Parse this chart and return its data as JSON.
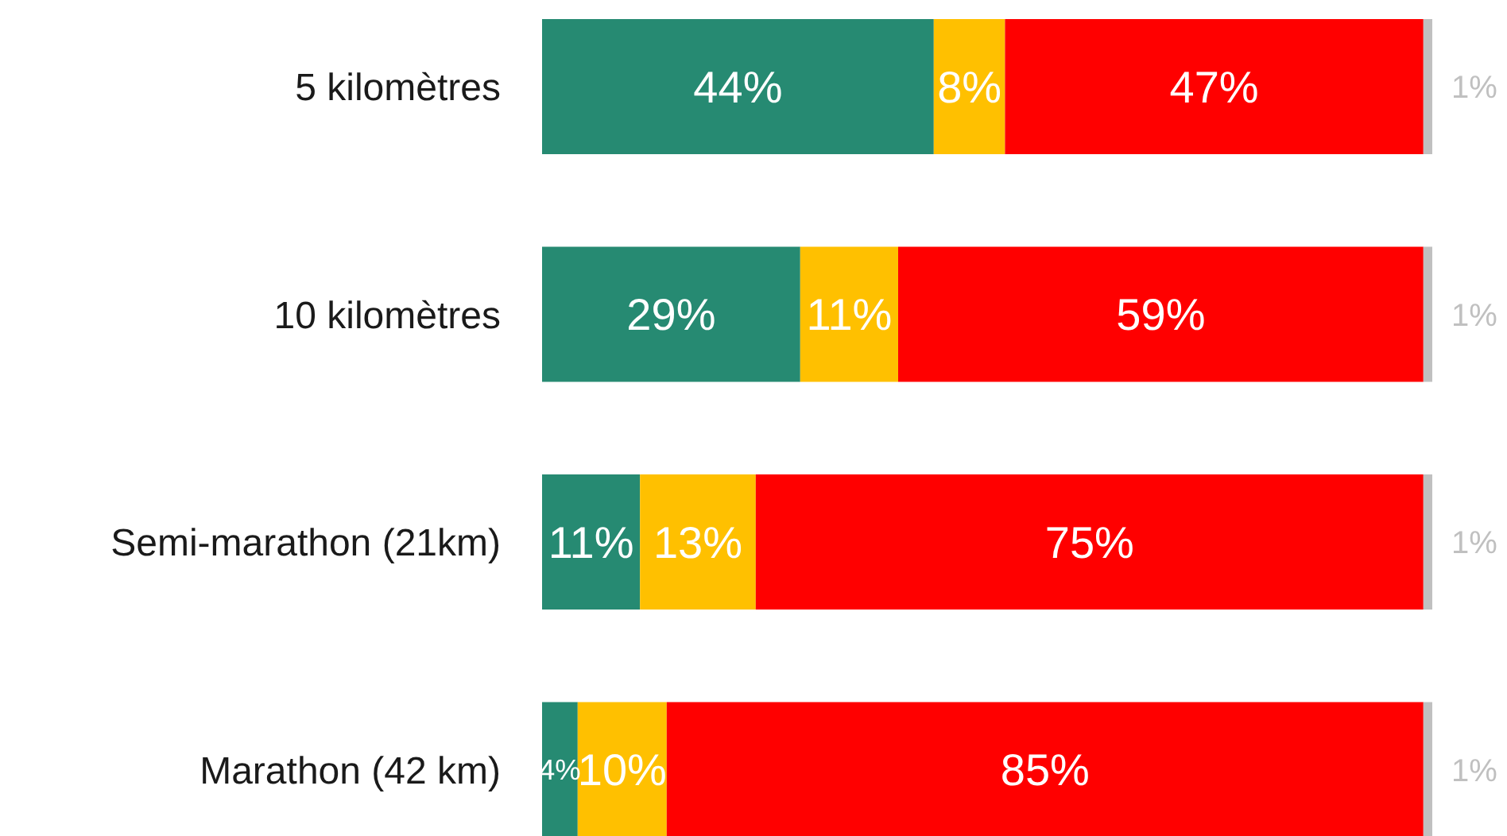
{
  "chart_data": {
    "type": "bar",
    "orientation": "horizontal",
    "stacked": true,
    "categories": [
      "5 kilomètres",
      "10 kilomètres",
      "Semi-marathon (21km)",
      "Marathon (42 km)"
    ],
    "xlim": [
      0,
      100
    ],
    "tick_labels": "y",
    "series": [
      {
        "color": "#268a72",
        "values": [
          44,
          29,
          11,
          4
        ],
        "value_labels": [
          "44%",
          "29%",
          "11%",
          "4%"
        ]
      },
      {
        "color": "#ffc000",
        "values": [
          8,
          11,
          13,
          10
        ],
        "value_labels": [
          "8%",
          "11%",
          "13%",
          "10%"
        ]
      },
      {
        "color": "#ff0000",
        "values": [
          47,
          59,
          75,
          85
        ],
        "value_labels": [
          "47%",
          "59%",
          "75%",
          "85%"
        ]
      },
      {
        "color": "#c0c0c0",
        "values": [
          1,
          1,
          1,
          1
        ],
        "value_labels": [
          "1%",
          "1%",
          "1%",
          "1%"
        ]
      }
    ]
  }
}
